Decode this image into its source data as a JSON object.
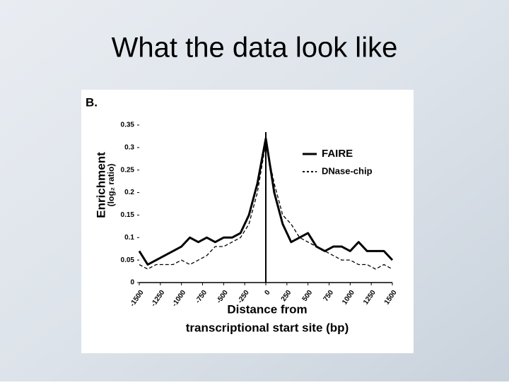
{
  "slide_title": "What the data look like",
  "chart_data": {
    "type": "line",
    "panel_label": "B.",
    "y_label": "Enrichment",
    "y_sublabel": "(log₂ ratio)",
    "x_label": [
      "Distance from",
      "transcriptional start site (bp)"
    ],
    "x": [
      -1500,
      -1400,
      -1300,
      -1200,
      -1100,
      -1000,
      -900,
      -800,
      -700,
      -600,
      -500,
      -400,
      -300,
      -200,
      -100,
      0,
      100,
      200,
      300,
      400,
      500,
      600,
      700,
      800,
      900,
      1000,
      1100,
      1200,
      1300,
      1400,
      1500
    ],
    "series": [
      {
        "name": "FAIRE",
        "color": "#000000",
        "dash": "solid",
        "values": [
          0.07,
          0.04,
          0.05,
          0.06,
          0.07,
          0.08,
          0.1,
          0.09,
          0.1,
          0.09,
          0.1,
          0.1,
          0.11,
          0.15,
          0.22,
          0.32,
          0.2,
          0.13,
          0.09,
          0.1,
          0.11,
          0.08,
          0.07,
          0.08,
          0.08,
          0.07,
          0.09,
          0.07,
          0.07,
          0.07,
          0.05
        ]
      },
      {
        "name": "DNase-chip",
        "color": "#000000",
        "dash": "dashed",
        "values": [
          0.04,
          0.03,
          0.04,
          0.04,
          0.04,
          0.05,
          0.04,
          0.05,
          0.06,
          0.08,
          0.08,
          0.09,
          0.1,
          0.13,
          0.2,
          0.31,
          0.22,
          0.15,
          0.13,
          0.1,
          0.09,
          0.08,
          0.07,
          0.06,
          0.05,
          0.05,
          0.04,
          0.04,
          0.03,
          0.04,
          0.03
        ]
      }
    ],
    "xlim": [
      -1500,
      1500
    ],
    "xticks": [
      -1500,
      -1250,
      -1000,
      -750,
      -500,
      -250,
      0,
      250,
      500,
      750,
      1000,
      1250,
      1500
    ],
    "ylim": [
      0,
      0.35
    ],
    "yticks": [
      0,
      0.05,
      0.1,
      0.15,
      0.2,
      0.25,
      0.3,
      0.35
    ],
    "legend": "upper right"
  }
}
